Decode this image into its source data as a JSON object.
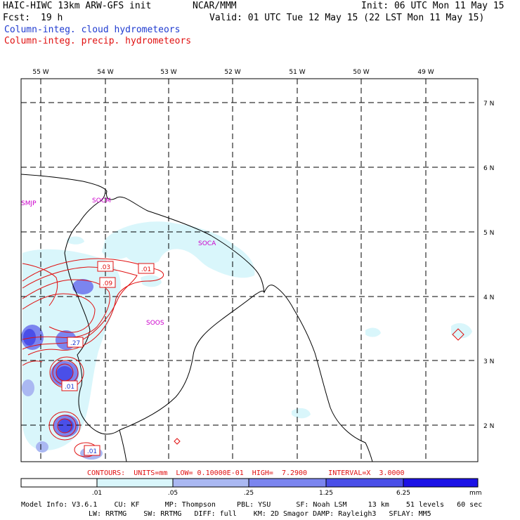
{
  "header": {
    "title_left": "HAIC-HIWC 13km ARW-GFS init",
    "org": "NCAR/MMM",
    "init": "Init: 06 UTC Mon 11 May 15",
    "fcst_label": "Fcst:",
    "fcst_value": "19 h",
    "valid": "Valid: 01 UTC Tue 12 May 15 (22 LST Mon 11 May 15)",
    "field_cloud": "Column-integ. cloud hydrometeors",
    "field_precip": "Column-integ. precip. hydrometeors"
  },
  "colors": {
    "cloud_text": "#1f3bd0",
    "precip_text": "#e01010",
    "shade_1": "#d9f6fb",
    "shade_2": "#aab8f2",
    "shade_3": "#7b85ef",
    "shade_4": "#4a4fe8",
    "shade_5": "#1c12e6",
    "coast": "#000000",
    "contour": "#e01010",
    "station": "#cc00cc"
  },
  "map": {
    "lon_labels": [
      "55 W",
      "54 W",
      "53 W",
      "52 W",
      "51 W",
      "50 W",
      "49 W"
    ],
    "lat_labels": [
      "7 N",
      "6 N",
      "5 N",
      "4 N",
      "3 N",
      "2 N"
    ],
    "stations": [
      "SMJP",
      "SOCM",
      "SOCA",
      "SOOS"
    ],
    "contour_labels": [
      ".03",
      ".01",
      ".09",
      ".27",
      ".01",
      ".01"
    ]
  },
  "contours_info": "CONTOURS:  UNITS=mm  LOW= 0.10000E-01  HIGH=  7.2900     INTERVAL=X  3.0000",
  "colorbar": {
    "ticks": [
      ".01",
      ".05",
      ".25",
      "1.25",
      "6.25"
    ],
    "unit": "mm"
  },
  "model_info": {
    "line1": "Model Info: V3.6.1    CU: KF      MP: Thompson     PBL: YSU      SF: Noah LSM     13 km    51 levels   60 sec",
    "line2": "LW: RRTMG    SW: RRTMG   DIFF: full    KM: 2D Smagor DAMP: Rayleigh3   SFLAY: MM5"
  }
}
